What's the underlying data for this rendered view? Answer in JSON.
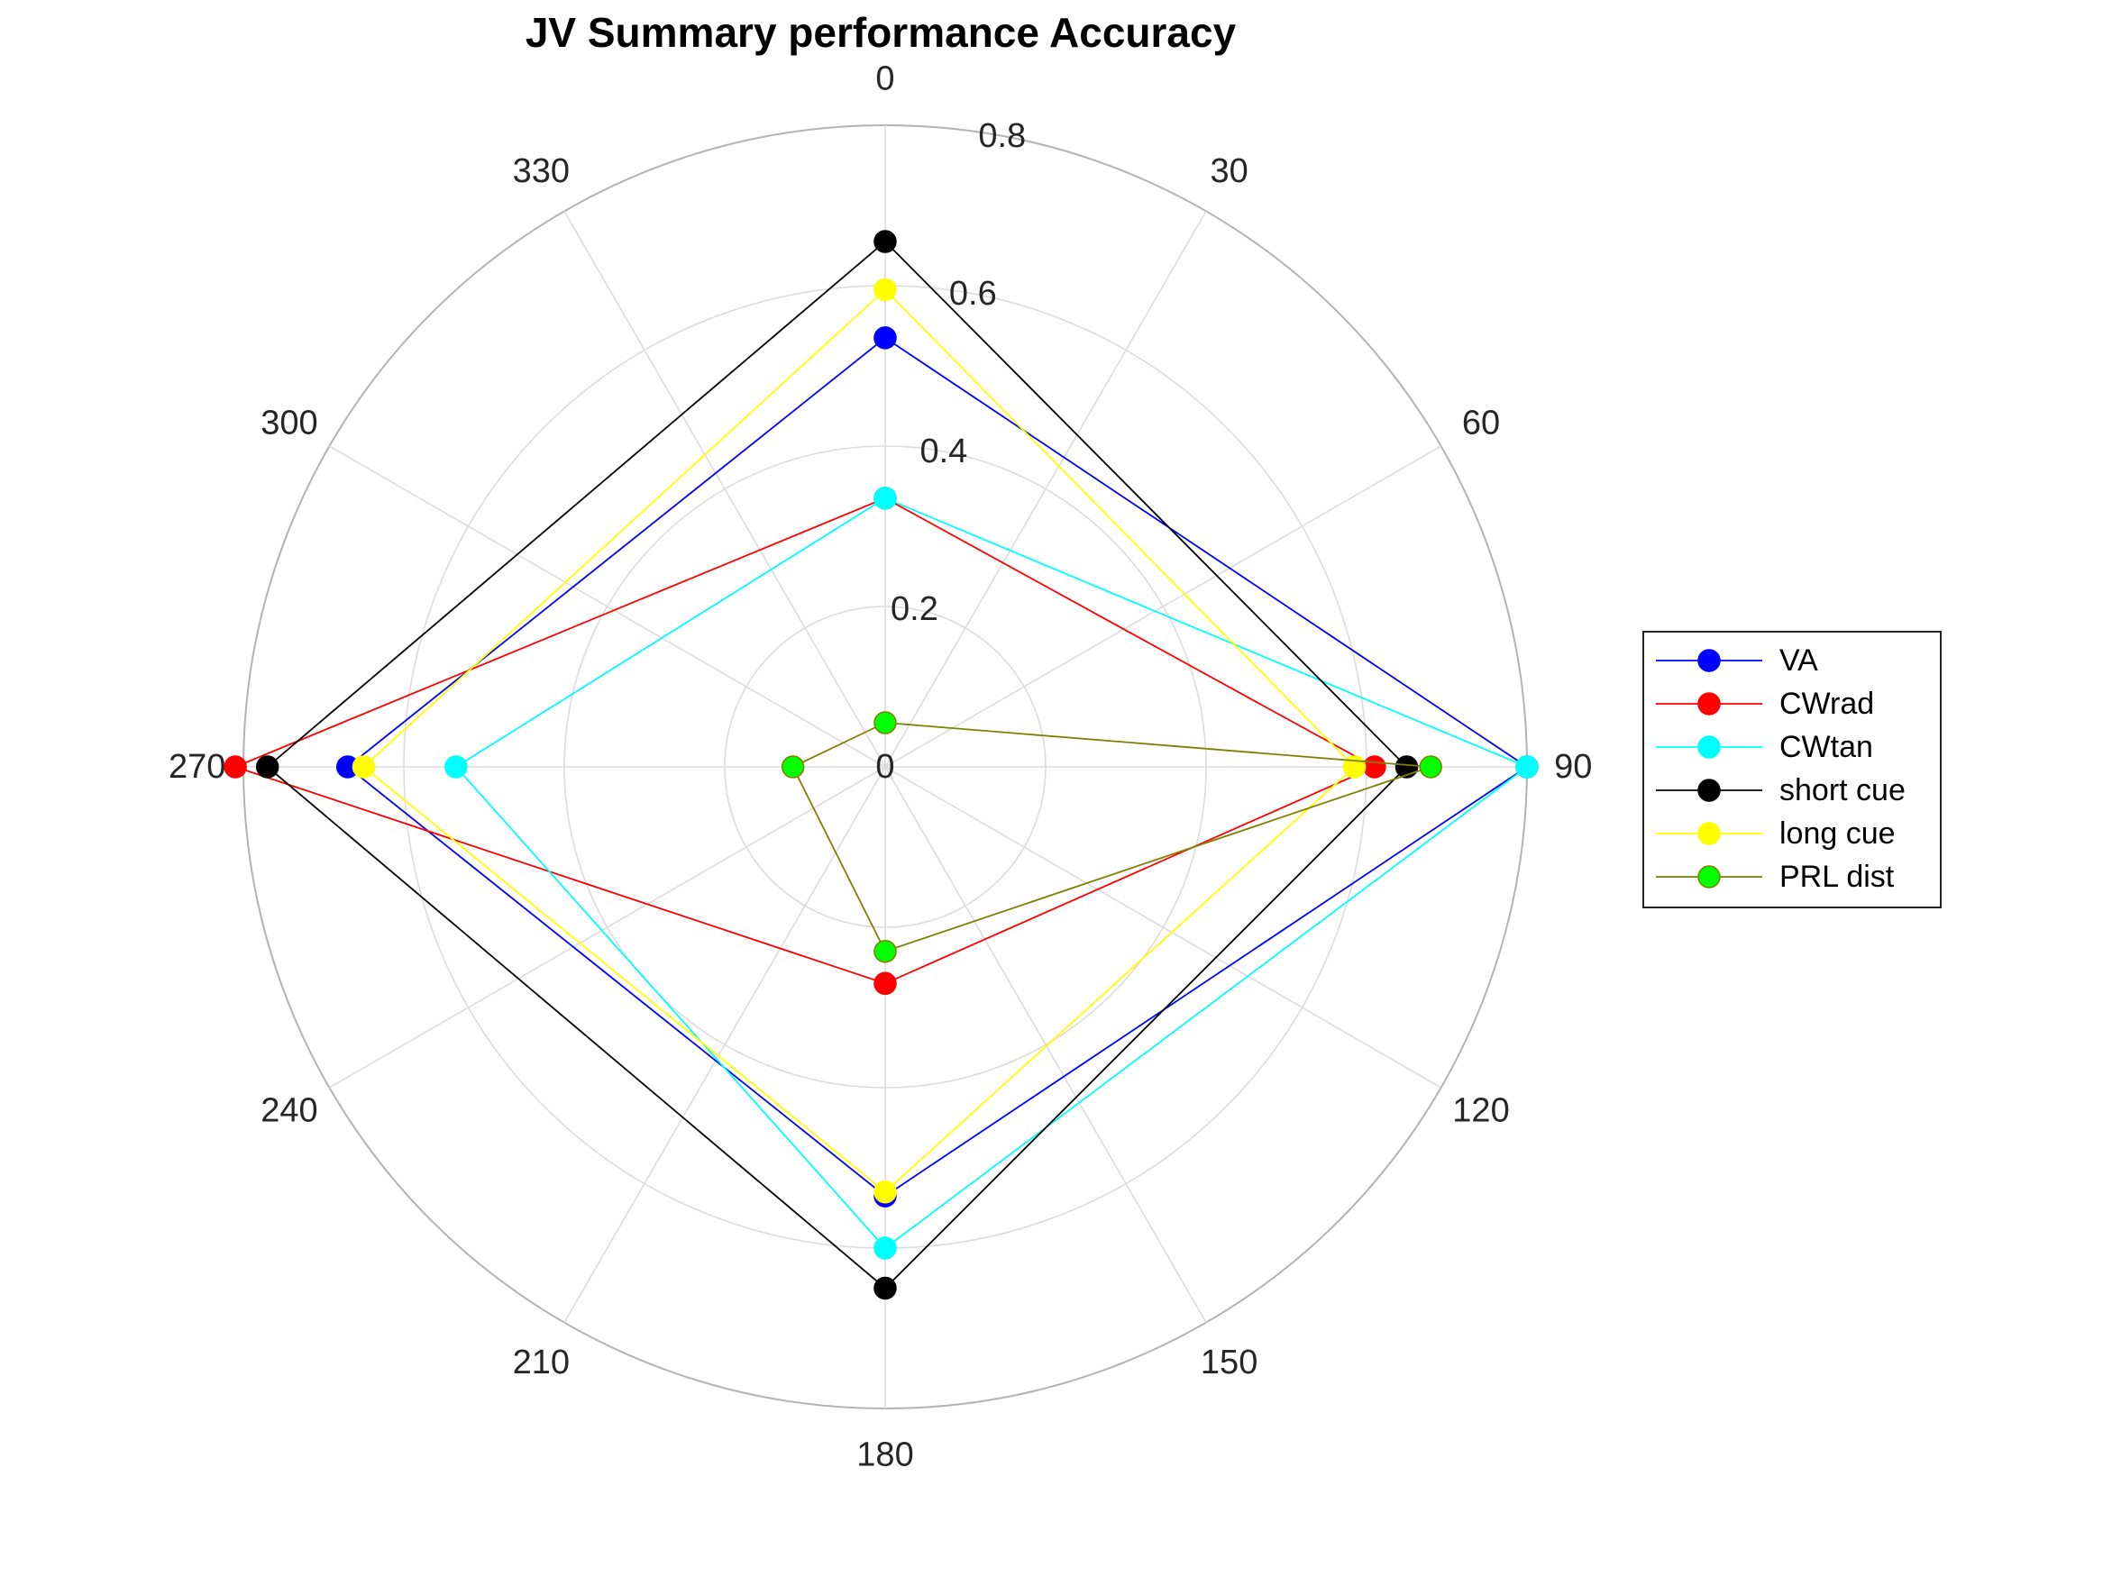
{
  "chart_data": {
    "type": "polar-line",
    "title": "JV Summary performance Accuracy",
    "theta_direction": "clockwise",
    "theta_zero": "top",
    "theta_ticks": [
      0,
      30,
      60,
      90,
      120,
      150,
      180,
      210,
      240,
      270,
      300,
      330
    ],
    "theta_tick_labels": [
      "0",
      "30",
      "60",
      "90",
      "120",
      "150",
      "180",
      "210",
      "240",
      "270",
      "300",
      "330"
    ],
    "rlim": [
      0,
      0.8
    ],
    "r_ticks": [
      0,
      0.2,
      0.4,
      0.6,
      0.8
    ],
    "r_tick_labels": [
      "0",
      "0.2",
      "0.4",
      "0.6",
      "0.8"
    ],
    "grid": true,
    "legend_position": "right",
    "theta": [
      0,
      90,
      180,
      270
    ],
    "series": [
      {
        "name": "VA",
        "r": [
          0.535,
          0.8,
          0.535,
          0.67
        ],
        "line_color": "#0000ff",
        "marker_color": "#0000ff"
      },
      {
        "name": "CWrad",
        "r": [
          0.335,
          0.61,
          0.27,
          0.81
        ],
        "line_color": "#ff0000",
        "marker_color": "#ff0000"
      },
      {
        "name": "CWtan",
        "r": [
          0.335,
          0.8,
          0.6,
          0.535
        ],
        "line_color": "#00ffff",
        "marker_color": "#00ffff"
      },
      {
        "name": "short cue",
        "r": [
          0.655,
          0.65,
          0.65,
          0.77
        ],
        "line_color": "#000000",
        "marker_color": "#000000"
      },
      {
        "name": "long cue",
        "r": [
          0.595,
          0.585,
          0.53,
          0.65
        ],
        "line_color": "#ffff00",
        "marker_color": "#ffff00"
      },
      {
        "name": "PRL dist",
        "r": [
          0.055,
          0.68,
          0.23,
          0.115
        ],
        "line_color": "#808000",
        "marker_color": "#00ff00"
      }
    ]
  }
}
